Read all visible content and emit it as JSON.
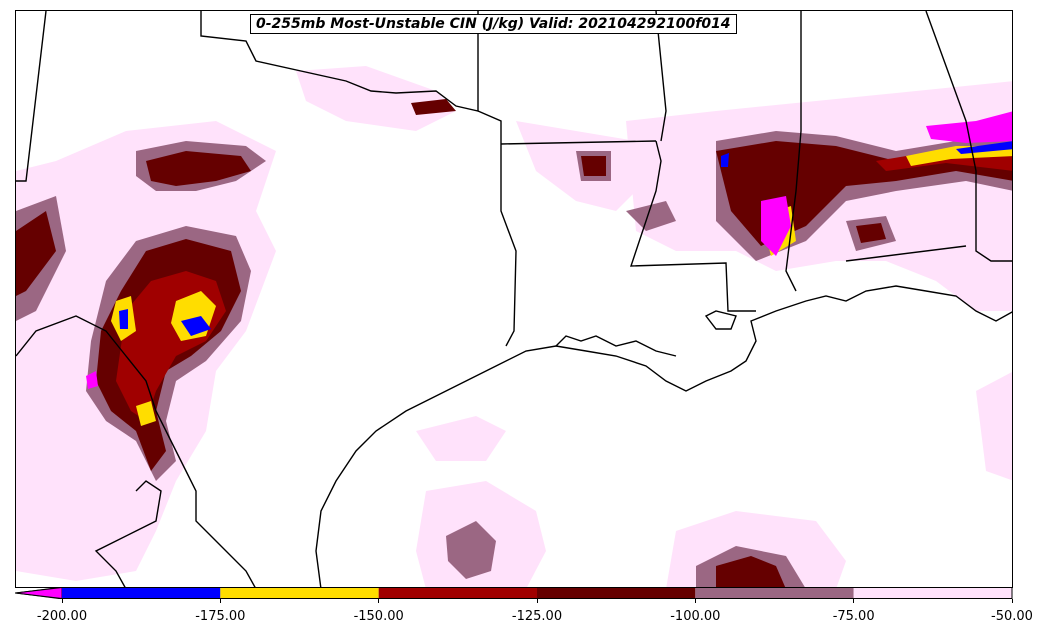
{
  "title": "0-255mb Most-Unstable CIN (J/kg) Valid: 202104292100f014",
  "colors": {
    "lt_-200": "#ff00ff",
    "c_-200_-175": "#0000ff",
    "c_-175_-150": "#ffdd00",
    "c_-150_-125": "#a00000",
    "c_-125_-100": "#650000",
    "c_-100_-75": "#9b6783",
    "c_-75_-50": "#ffe2fb",
    "borders": "#000000"
  },
  "colorbar": {
    "ticks": [
      "-200.00",
      "-175.00",
      "-150.00",
      "-125.00",
      "-100.00",
      "-75.00",
      "-50.00"
    ],
    "bins": [
      {
        "from": -200,
        "to": -175,
        "color": "#0000ff"
      },
      {
        "from": -175,
        "to": -150,
        "color": "#ffdd00"
      },
      {
        "from": -150,
        "to": -125,
        "color": "#a00000"
      },
      {
        "from": -125,
        "to": -100,
        "color": "#650000"
      },
      {
        "from": -100,
        "to": -75,
        "color": "#9b6783"
      },
      {
        "from": -75,
        "to": -50,
        "color": "#ffe2fb"
      }
    ],
    "extend_min_color": "#ff00ff",
    "vmin": -200,
    "vmax": -50
  }
}
